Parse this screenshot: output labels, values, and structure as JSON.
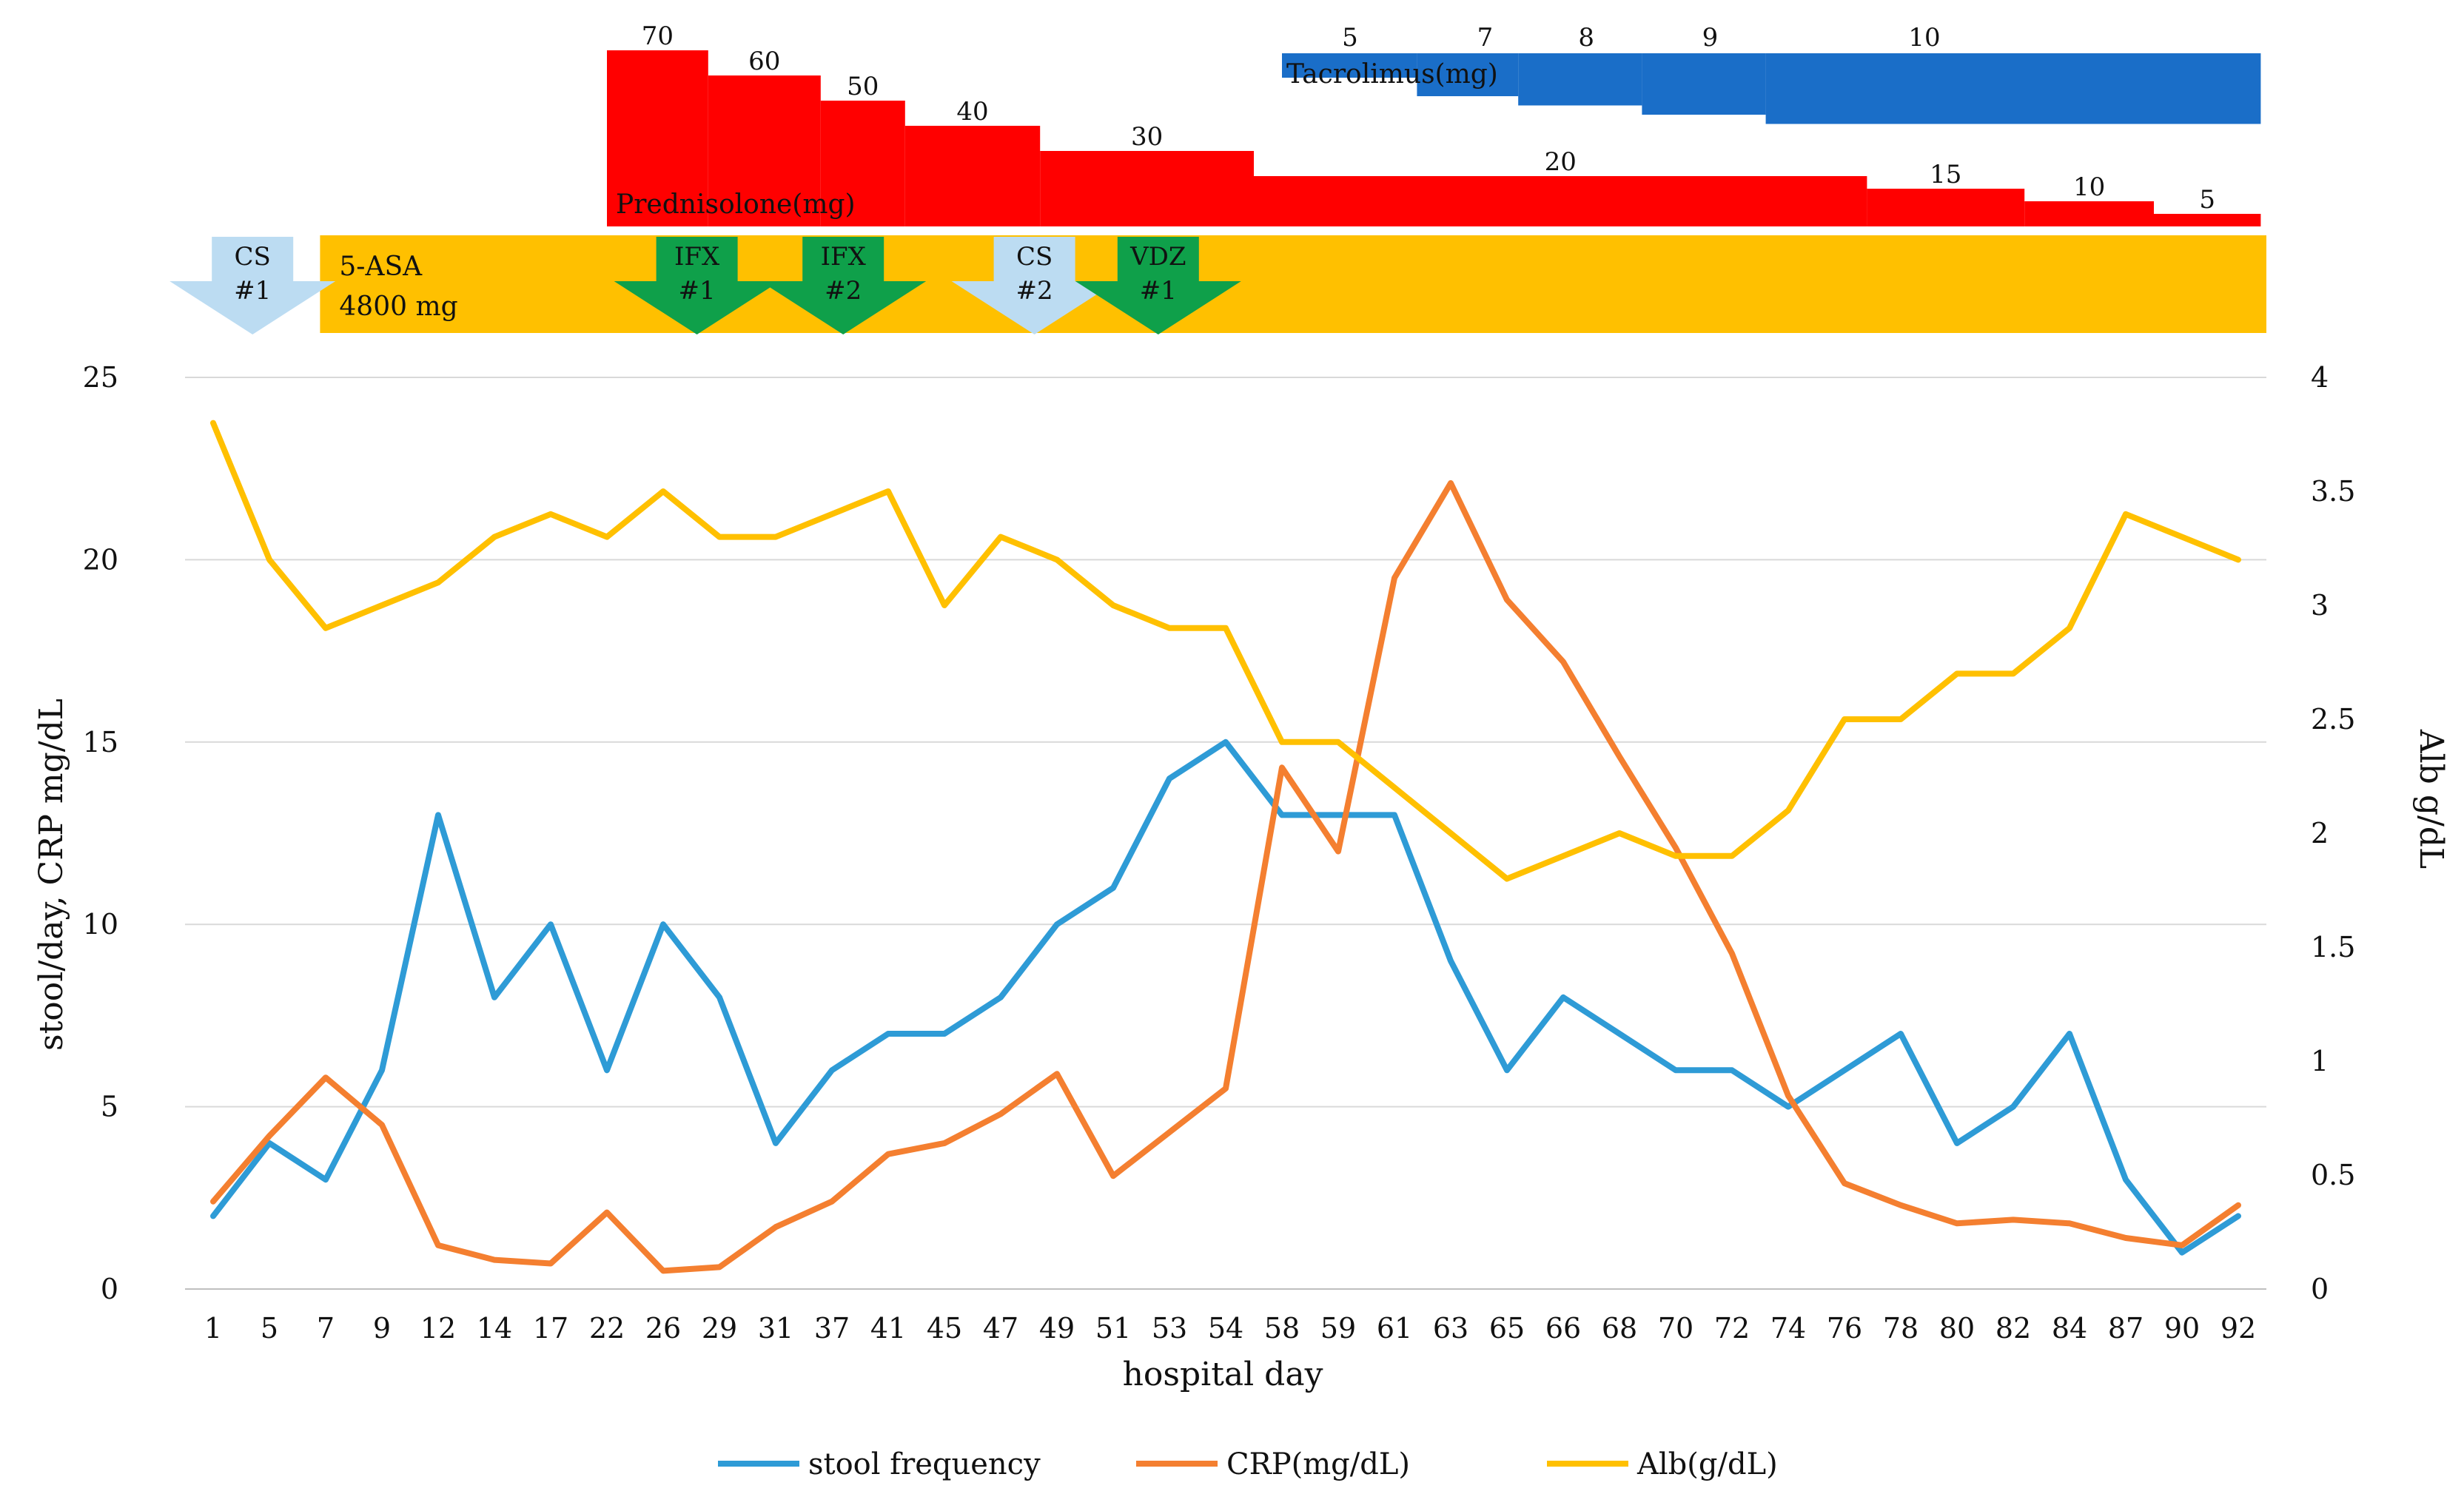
{
  "chart_data": {
    "type": "line",
    "xlabel": "hospital day",
    "ylabel": "stool/day, CRP mg/dL",
    "y2label": "Alb g/dL",
    "ylim": [
      0,
      25
    ],
    "y2lim": [
      0,
      4
    ],
    "yticks": [
      0,
      5,
      10,
      15,
      20,
      25
    ],
    "y2ticks": [
      0,
      0.5,
      1,
      1.5,
      2,
      2.5,
      3,
      3.5,
      4
    ],
    "grid": true,
    "legend_position": "bottom",
    "categories": [
      "1",
      "5",
      "7",
      "9",
      "12",
      "14",
      "17",
      "22",
      "26",
      "29",
      "31",
      "37",
      "41",
      "45",
      "47",
      "49",
      "51",
      "53",
      "54",
      "58",
      "59",
      "61",
      "63",
      "65",
      "66",
      "68",
      "70",
      "72",
      "74",
      "76",
      "78",
      "80",
      "82",
      "84",
      "87",
      "90",
      "92"
    ],
    "series": [
      {
        "name": "stool frequency",
        "axis": "left",
        "color": "#2e9bd6",
        "values": [
          2,
          4,
          3,
          6,
          13,
          8,
          10,
          6,
          10,
          8,
          4,
          6,
          7,
          7,
          8,
          10,
          11,
          14,
          15,
          13,
          13,
          13,
          9,
          6,
          8,
          7,
          6,
          6,
          5,
          6,
          7,
          4,
          5,
          7,
          3,
          1,
          2
        ]
      },
      {
        "name": "CRP(mg/dL)",
        "axis": "left",
        "color": "#f47f30",
        "values": [
          2.4,
          4.2,
          5.8,
          4.5,
          1.2,
          0.8,
          0.7,
          2.1,
          0.5,
          0.6,
          1.7,
          2.4,
          3.7,
          4.0,
          4.8,
          5.9,
          3.1,
          4.3,
          5.5,
          14.3,
          12.0,
          19.5,
          22.1,
          18.9,
          17.2,
          14.6,
          12.1,
          9.2,
          5.3,
          2.9,
          2.3,
          1.8,
          1.9,
          1.8,
          1.4,
          1.2,
          2.3
        ]
      },
      {
        "name": "Alb(g/dL)",
        "axis": "right",
        "color": "#ffc000",
        "values": [
          3.8,
          3.2,
          2.9,
          3.0,
          3.1,
          3.3,
          3.4,
          3.3,
          3.5,
          3.3,
          3.3,
          3.4,
          3.5,
          3.0,
          3.3,
          3.2,
          3.0,
          2.9,
          2.9,
          2.4,
          2.4,
          2.2,
          2.0,
          1.8,
          1.9,
          2.0,
          1.9,
          1.9,
          2.1,
          2.5,
          2.5,
          2.7,
          2.7,
          2.9,
          3.4,
          3.3,
          3.2
        ]
      }
    ],
    "treatments": {
      "prednisolone": {
        "label": "Prednisolone(mg)",
        "color": "#ff0000",
        "steps": [
          {
            "dose": "70",
            "from": 7.0,
            "to": 8.8
          },
          {
            "dose": "60",
            "from": 8.8,
            "to": 10.8
          },
          {
            "dose": "50",
            "from": 10.8,
            "to": 12.3
          },
          {
            "dose": "40",
            "from": 12.3,
            "to": 14.7
          },
          {
            "dose": "30",
            "from": 14.7,
            "to": 18.5
          },
          {
            "dose": "20",
            "from": 18.5,
            "to": 29.4
          },
          {
            "dose": "15",
            "from": 29.4,
            "to": 32.2
          },
          {
            "dose": "10",
            "from": 32.2,
            "to": 34.5
          },
          {
            "dose": "5",
            "from": 34.5,
            "to": 36.4
          }
        ]
      },
      "tacrolimus": {
        "label": "Tacrolimus(mg)",
        "color": "#1a6ec8",
        "steps": [
          {
            "dose": "5",
            "from": 19.0,
            "to": 21.4
          },
          {
            "dose": "7",
            "from": 21.4,
            "to": 23.2
          },
          {
            "dose": "8",
            "from": 23.2,
            "to": 25.4
          },
          {
            "dose": "9",
            "from": 25.4,
            "to": 27.6
          },
          {
            "dose": "10",
            "from": 27.6,
            "to": 36.4
          }
        ]
      },
      "asa": {
        "line1": "5-ASA",
        "line2": "4800 mg",
        "color": "#ffc000",
        "from": 1.9,
        "to": 36.5
      },
      "arrows": [
        {
          "line1": "CS",
          "line2": "#1",
          "color": "#bcdcf2",
          "at": 0.7
        },
        {
          "line1": "IFX",
          "line2": "#1",
          "color": "#0fa04a",
          "at": 8.6
        },
        {
          "line1": "IFX",
          "line2": "#2",
          "color": "#0fa04a",
          "at": 11.2
        },
        {
          "line1": "CS",
          "line2": "#2",
          "color": "#bcdcf2",
          "at": 14.6
        },
        {
          "line1": "VDZ",
          "line2": "#1",
          "color": "#0fa04a",
          "at": 16.8
        }
      ]
    }
  }
}
